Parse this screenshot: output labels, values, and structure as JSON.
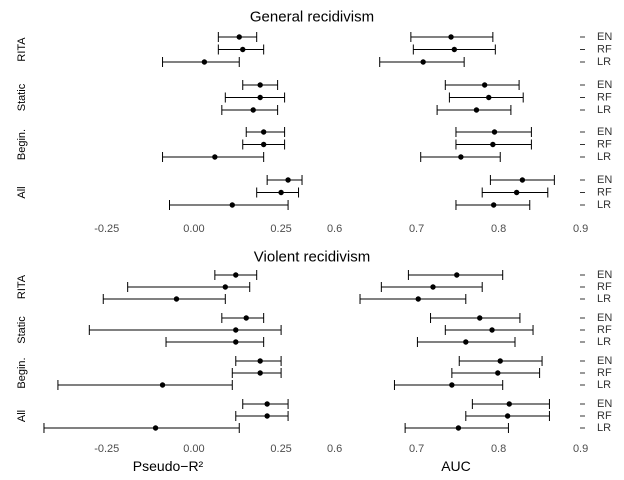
{
  "chart_data": {
    "type": "scatter",
    "series": [
      "EN",
      "RF",
      "LR"
    ],
    "groups": [
      "RITA",
      "Static",
      "Begin.",
      "All"
    ],
    "xlabels": {
      "left": "Pseudo−R²",
      "right": "AUC"
    },
    "xticks": {
      "left": [
        {
          "v": -0.25,
          "label": "-0.25"
        },
        {
          "v": 0.0,
          "label": "0.00"
        },
        {
          "v": 0.25,
          "label": "0.25"
        }
      ],
      "right": [
        {
          "v": 0.6,
          "label": "0.6"
        },
        {
          "v": 0.7,
          "label": "0.7"
        },
        {
          "v": 0.8,
          "label": "0.8"
        },
        {
          "v": 0.9,
          "label": "0.9"
        }
      ]
    },
    "xlim": {
      "left": [
        -0.45,
        0.33
      ],
      "right": [
        0.57,
        0.92
      ]
    },
    "panels": [
      {
        "title": "General recidivism",
        "left": {
          "RITA": [
            [
              0.13,
              0.07,
              0.18
            ],
            [
              0.14,
              0.07,
              0.2
            ],
            [
              0.03,
              -0.09,
              0.13
            ]
          ],
          "Static": [
            [
              0.19,
              0.14,
              0.24
            ],
            [
              0.19,
              0.09,
              0.26
            ],
            [
              0.17,
              0.08,
              0.24
            ]
          ],
          "Begin.": [
            [
              0.2,
              0.15,
              0.26
            ],
            [
              0.2,
              0.14,
              0.26
            ],
            [
              0.06,
              -0.09,
              0.2
            ]
          ],
          "All": [
            [
              0.27,
              0.21,
              0.31
            ],
            [
              0.25,
              0.18,
              0.3
            ],
            [
              0.11,
              -0.07,
              0.27
            ]
          ]
        },
        "right": {
          "RITA": [
            [
              0.742,
              0.693,
              0.793
            ],
            [
              0.746,
              0.696,
              0.796
            ],
            [
              0.708,
              0.655,
              0.758
            ]
          ],
          "Static": [
            [
              0.783,
              0.735,
              0.825
            ],
            [
              0.788,
              0.74,
              0.83
            ],
            [
              0.773,
              0.725,
              0.815
            ]
          ],
          "Begin.": [
            [
              0.795,
              0.748,
              0.84
            ],
            [
              0.793,
              0.748,
              0.84
            ],
            [
              0.754,
              0.705,
              0.802
            ]
          ],
          "All": [
            [
              0.829,
              0.79,
              0.868
            ],
            [
              0.822,
              0.78,
              0.86
            ],
            [
              0.794,
              0.748,
              0.838
            ]
          ]
        }
      },
      {
        "title": "Violent recidivism",
        "left": {
          "RITA": [
            [
              0.12,
              0.06,
              0.18
            ],
            [
              0.09,
              -0.19,
              0.16
            ],
            [
              -0.05,
              -0.26,
              0.09
            ]
          ],
          "Static": [
            [
              0.15,
              0.08,
              0.2
            ],
            [
              0.12,
              -0.3,
              0.25
            ],
            [
              0.12,
              -0.08,
              0.2
            ]
          ],
          "Begin.": [
            [
              0.19,
              0.12,
              0.25
            ],
            [
              0.19,
              0.11,
              0.25
            ],
            [
              -0.09,
              -0.39,
              0.11
            ]
          ],
          "All": [
            [
              0.21,
              0.14,
              0.27
            ],
            [
              0.21,
              0.12,
              0.27
            ],
            [
              -0.11,
              -0.43,
              0.13
            ]
          ]
        },
        "right": {
          "RITA": [
            [
              0.749,
              0.69,
              0.805
            ],
            [
              0.72,
              0.657,
              0.78
            ],
            [
              0.702,
              0.631,
              0.76
            ]
          ],
          "Static": [
            [
              0.777,
              0.717,
              0.826
            ],
            [
              0.792,
              0.735,
              0.842
            ],
            [
              0.76,
              0.701,
              0.82
            ]
          ],
          "Begin.": [
            [
              0.802,
              0.752,
              0.853
            ],
            [
              0.799,
              0.743,
              0.85
            ],
            [
              0.743,
              0.673,
              0.805
            ]
          ],
          "All": [
            [
              0.813,
              0.768,
              0.862
            ],
            [
              0.811,
              0.76,
              0.862
            ],
            [
              0.751,
              0.686,
              0.812
            ]
          ]
        }
      }
    ]
  }
}
